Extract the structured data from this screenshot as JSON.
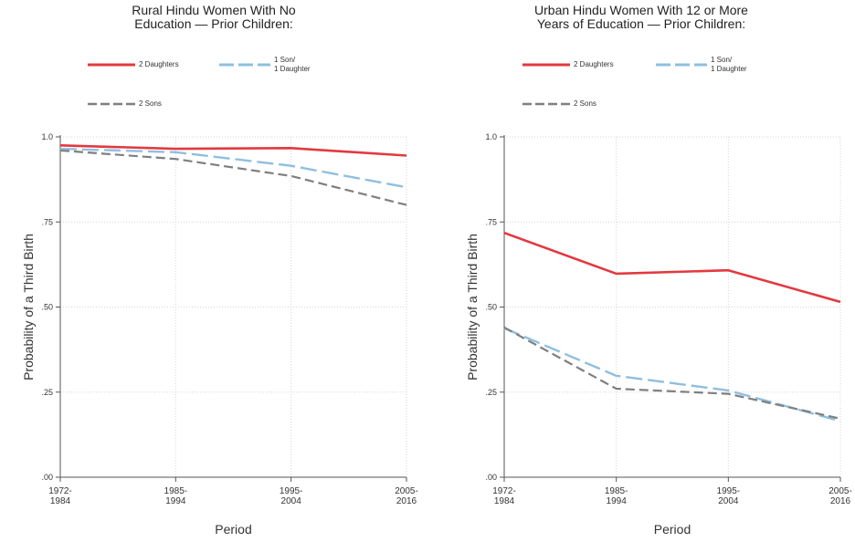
{
  "chart_data": [
    {
      "type": "line",
      "title": [
        "Rural Hindu Women With No",
        "Education — Prior Children:"
      ],
      "xlabel": "Period",
      "ylabel": "Probability of a Third Birth",
      "categories": [
        "1972-1984",
        "1985-1994",
        "1995-2004",
        "2005-2016"
      ],
      "x_tick_labels": [
        [
          "1972-",
          "1984"
        ],
        [
          "1985-",
          "1994"
        ],
        [
          "1995-",
          "2004"
        ],
        [
          "2005-",
          "2016"
        ]
      ],
      "y_ticks": [
        0,
        0.25,
        0.5,
        0.75,
        1.0
      ],
      "y_tick_labels": [
        ".00",
        ".25",
        ".50",
        ".75",
        "1.0"
      ],
      "ylim": [
        0,
        1.0
      ],
      "grid": true,
      "legend_position": "top",
      "series": [
        {
          "name": "2 Daughters",
          "name_lines": [
            "2 Daughters"
          ],
          "color": "#e2393f",
          "dash": "solid",
          "values": [
            0.975,
            0.965,
            0.967,
            0.945
          ]
        },
        {
          "name": "1 Son/ 1 Daughter",
          "name_lines": [
            "1 Son/",
            "1 Daughter"
          ],
          "color": "#8fbfe0",
          "dash": "long-dash",
          "values": [
            0.965,
            0.955,
            0.915,
            0.852
          ]
        },
        {
          "name": "2 Sons",
          "name_lines": [
            "2 Sons"
          ],
          "color": "#7f7f7f",
          "dash": "dash",
          "values": [
            0.96,
            0.935,
            0.885,
            0.8
          ]
        }
      ]
    },
    {
      "type": "line",
      "title": [
        "Urban Hindu Women With 12 or More",
        "Years of Education — Prior Children:"
      ],
      "xlabel": "Period",
      "ylabel": "Probability of a Third Birth",
      "categories": [
        "1972-1984",
        "1985-1994",
        "1995-2004",
        "2005-2016"
      ],
      "x_tick_labels": [
        [
          "1972-",
          "1984"
        ],
        [
          "1985-",
          "1994"
        ],
        [
          "1995-",
          "2004"
        ],
        [
          "2005-",
          "2016"
        ]
      ],
      "y_ticks": [
        0,
        0.25,
        0.5,
        0.75,
        1.0
      ],
      "y_tick_labels": [
        ".00",
        ".25",
        ".50",
        ".75",
        "1.0"
      ],
      "ylim": [
        0,
        1.0
      ],
      "grid": true,
      "legend_position": "top",
      "series": [
        {
          "name": "2 Daughters",
          "name_lines": [
            "2 Daughters"
          ],
          "color": "#e2393f",
          "dash": "solid",
          "values": [
            0.718,
            0.598,
            0.608,
            0.515
          ]
        },
        {
          "name": "1 Son/ 1 Daughter",
          "name_lines": [
            "1 Son/",
            "1 Daughter"
          ],
          "color": "#8fbfe0",
          "dash": "long-dash",
          "values": [
            0.438,
            0.298,
            0.255,
            0.165
          ]
        },
        {
          "name": "2 Sons",
          "name_lines": [
            "2 Sons"
          ],
          "color": "#7f7f7f",
          "dash": "dash",
          "values": [
            0.44,
            0.26,
            0.245,
            0.172
          ]
        }
      ]
    }
  ]
}
